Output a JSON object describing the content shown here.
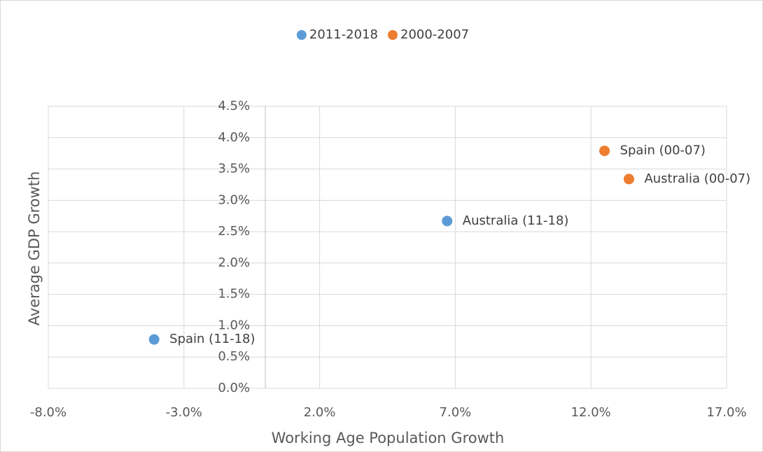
{
  "chart_data": {
    "type": "scatter",
    "xlabel": "Working Age Population Growth",
    "ylabel": "Average GDP Growth",
    "xlim": [
      -8,
      17
    ],
    "xticks": [
      {
        "value": -8,
        "label": "-8.0%"
      },
      {
        "value": -3,
        "label": "-3.0%"
      },
      {
        "value": 2,
        "label": "2.0%"
      },
      {
        "value": 7,
        "label": "7.0%"
      },
      {
        "value": 12,
        "label": "12.0%"
      },
      {
        "value": 17,
        "label": "17.0%"
      }
    ],
    "ylim": [
      0,
      4.5
    ],
    "yticks": [
      {
        "value": 0,
        "label": "0.0%"
      },
      {
        "value": 0.5,
        "label": "0.5%"
      },
      {
        "value": 1,
        "label": "1.0%"
      },
      {
        "value": 1.5,
        "label": "1.5%"
      },
      {
        "value": 2,
        "label": "2.0%"
      },
      {
        "value": 2.5,
        "label": "2.5%"
      },
      {
        "value": 3,
        "label": "3.0%"
      },
      {
        "value": 3.5,
        "label": "3.5%"
      },
      {
        "value": 4,
        "label": "4.0%"
      },
      {
        "value": 4.5,
        "label": "4.5%"
      }
    ],
    "grid": true,
    "legend": "top",
    "series": [
      {
        "name": "2011-2018",
        "color": "#5b9bd5",
        "x": [
          -4.1,
          6.7
        ],
        "values": [
          0.78,
          2.67
        ],
        "point_labels": [
          "Spain (11-18)",
          "Australia (11-18)"
        ]
      },
      {
        "name": "2000-2007",
        "color": "#ed7d31",
        "x": [
          12.5,
          13.4
        ],
        "values": [
          3.79,
          3.34
        ],
        "point_labels": [
          "Spain (00-07)",
          "Australia (00-07)"
        ]
      }
    ]
  }
}
